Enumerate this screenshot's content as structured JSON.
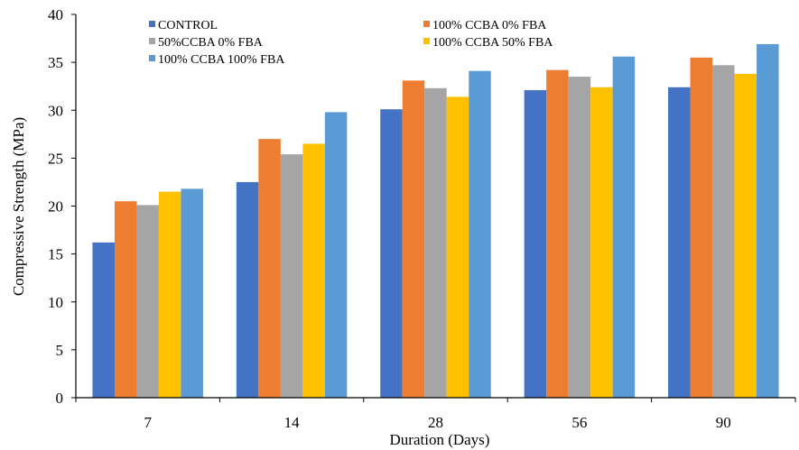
{
  "chart_data": {
    "type": "bar",
    "title": "",
    "xlabel": "Duration (Days)",
    "ylabel": "Compressive Strength (MPa)",
    "categories": [
      "7",
      "14",
      "28",
      "56",
      "90"
    ],
    "ylim": [
      0,
      40
    ],
    "yticks": [
      "0",
      "5",
      "10",
      "15",
      "20",
      "25",
      "30",
      "35",
      "40"
    ],
    "grid": false,
    "legend_position": "top",
    "series": [
      {
        "name": "CONTROL",
        "color": "#4472C4",
        "values": [
          16.2,
          22.5,
          30.1,
          32.1,
          32.4
        ]
      },
      {
        "name": "100% CCBA 0% FBA",
        "color": "#ED7D31",
        "values": [
          20.5,
          27.0,
          33.1,
          34.2,
          35.5
        ]
      },
      {
        "name": "50%CCBA 0% FBA",
        "color": "#A5A5A5",
        "values": [
          20.1,
          25.4,
          32.3,
          33.5,
          34.7
        ]
      },
      {
        "name": "100% CCBA 50% FBA",
        "color": "#FFC000",
        "values": [
          21.5,
          26.5,
          31.4,
          32.4,
          33.8
        ]
      },
      {
        "name": "100% CCBA 100% FBA",
        "color": "#5B9BD5",
        "values": [
          21.8,
          29.8,
          34.1,
          35.6,
          36.9
        ]
      }
    ]
  }
}
